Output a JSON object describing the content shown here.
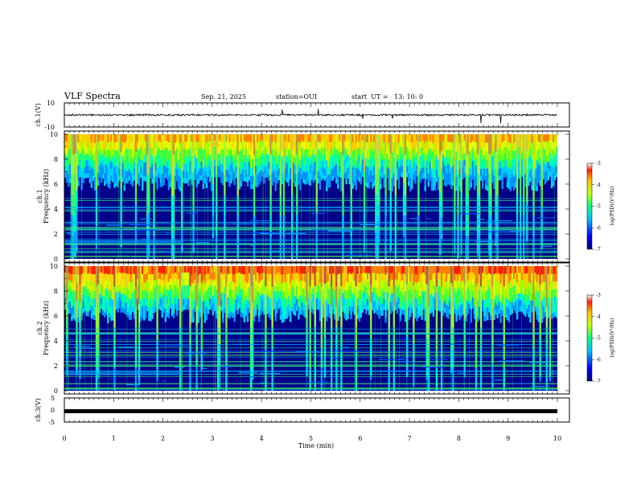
{
  "header": {
    "title": "VLF Spectra",
    "date": "Sep. 21, 2025",
    "station": "station=OUI",
    "start_ut": "start  UT =   13: 10: 0"
  },
  "chart_data": [
    {
      "type": "line",
      "ylabel": "ch.1(V)",
      "ylim": [
        -10,
        10
      ],
      "yticks": [
        "10",
        "-10"
      ],
      "series_desc": "noisy waveform near 0 V with sparse spikes"
    },
    {
      "type": "heatmap",
      "ylabel_line1": "ch.1",
      "ylabel_line2": "Frequency (kHz)",
      "ylim": [
        0,
        10
      ],
      "yticks": [
        "0",
        "2",
        "4",
        "6",
        "8",
        "10"
      ],
      "colorbar": {
        "label": "log(PSD)(V²/Hz)",
        "ticks": [
          "-3",
          "-4",
          "-5",
          "-6",
          "-7"
        ],
        "range": [
          -7,
          -3
        ]
      }
    },
    {
      "type": "heatmap",
      "ylabel_line1": "ch.2",
      "ylabel_line2": "Frequency (kHz)",
      "ylim": [
        0,
        10
      ],
      "yticks": [
        "0",
        "2",
        "4",
        "6",
        "8",
        "10"
      ],
      "colorbar": {
        "label": "log(PSD)(V²/Hz)",
        "ticks": [
          "-3",
          "-4",
          "-5",
          "-6",
          "-7"
        ],
        "range": [
          -7,
          -3
        ]
      }
    },
    {
      "type": "line",
      "ylabel": "ch.3(V)",
      "ylim": [
        -5,
        5
      ],
      "yticks": [
        "5",
        "0",
        "-5"
      ],
      "series_desc": "flat line near -1.5 V"
    }
  ],
  "xaxis": {
    "label": "Time (min)",
    "range": [
      0,
      10
    ],
    "ticks": [
      "0",
      "1",
      "2",
      "3",
      "4",
      "5",
      "6",
      "7",
      "8",
      "9",
      "10"
    ]
  }
}
